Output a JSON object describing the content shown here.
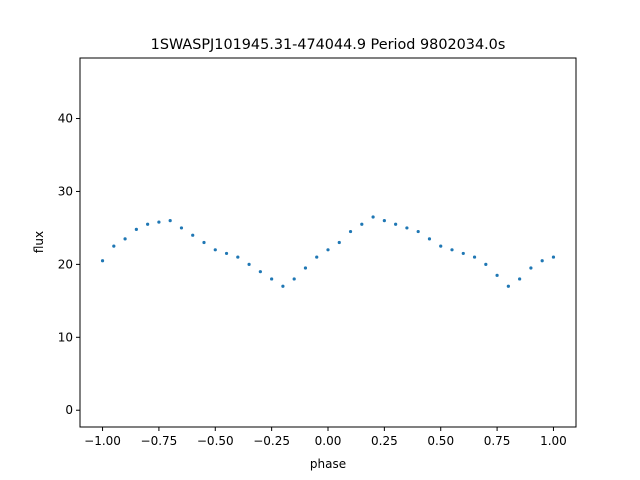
{
  "chart_data": {
    "type": "scatter",
    "title": "1SWASPJ101945.31-474044.9 Period 9802034.0s",
    "xlabel": "phase",
    "ylabel": "flux",
    "xlim": [
      -1.1,
      1.1
    ],
    "ylim": [
      -2.3,
      48.3
    ],
    "xticks": [
      -1.0,
      -0.75,
      -0.5,
      -0.25,
      0.0,
      0.25,
      0.5,
      0.75,
      1.0
    ],
    "xtick_labels": [
      "−1.00",
      "−0.75",
      "−0.50",
      "−0.25",
      "0.00",
      "0.25",
      "0.50",
      "0.75",
      "1.00"
    ],
    "yticks": [
      0,
      10,
      20,
      30,
      40
    ],
    "ytick_labels": [
      "0",
      "10",
      "20",
      "30",
      "40"
    ],
    "grid": false,
    "legend": "none",
    "marker_color": "#1f77b4",
    "series": [
      {
        "x": [
          -1.0,
          -0.95,
          -0.9,
          -0.85,
          -0.8,
          -0.75,
          -0.7,
          -0.65,
          -0.6,
          -0.55,
          -0.5,
          -0.45,
          -0.4,
          -0.35,
          -0.3,
          -0.25,
          -0.2,
          -0.15,
          -0.1,
          -0.05,
          0.0,
          0.05,
          0.1,
          0.15,
          0.2,
          0.25,
          0.3,
          0.35,
          0.4,
          0.45,
          0.5,
          0.55,
          0.6,
          0.65,
          0.7,
          0.75,
          0.8,
          0.85,
          0.9,
          0.95,
          1.0
        ],
        "y": [
          20.5,
          22.5,
          23.5,
          24.8,
          25.5,
          25.8,
          26.0,
          25.0,
          24.0,
          23.0,
          22.0,
          21.5,
          21.0,
          20.0,
          19.0,
          18.0,
          17.0,
          18.0,
          19.5,
          21.0,
          22.0,
          23.0,
          24.5,
          25.5,
          26.5,
          26.0,
          25.5,
          25.0,
          24.5,
          23.5,
          22.5,
          22.0,
          21.5,
          21.0,
          20.0,
          18.5,
          17.0,
          18.0,
          19.5,
          20.5,
          21.0
        ]
      }
    ]
  }
}
